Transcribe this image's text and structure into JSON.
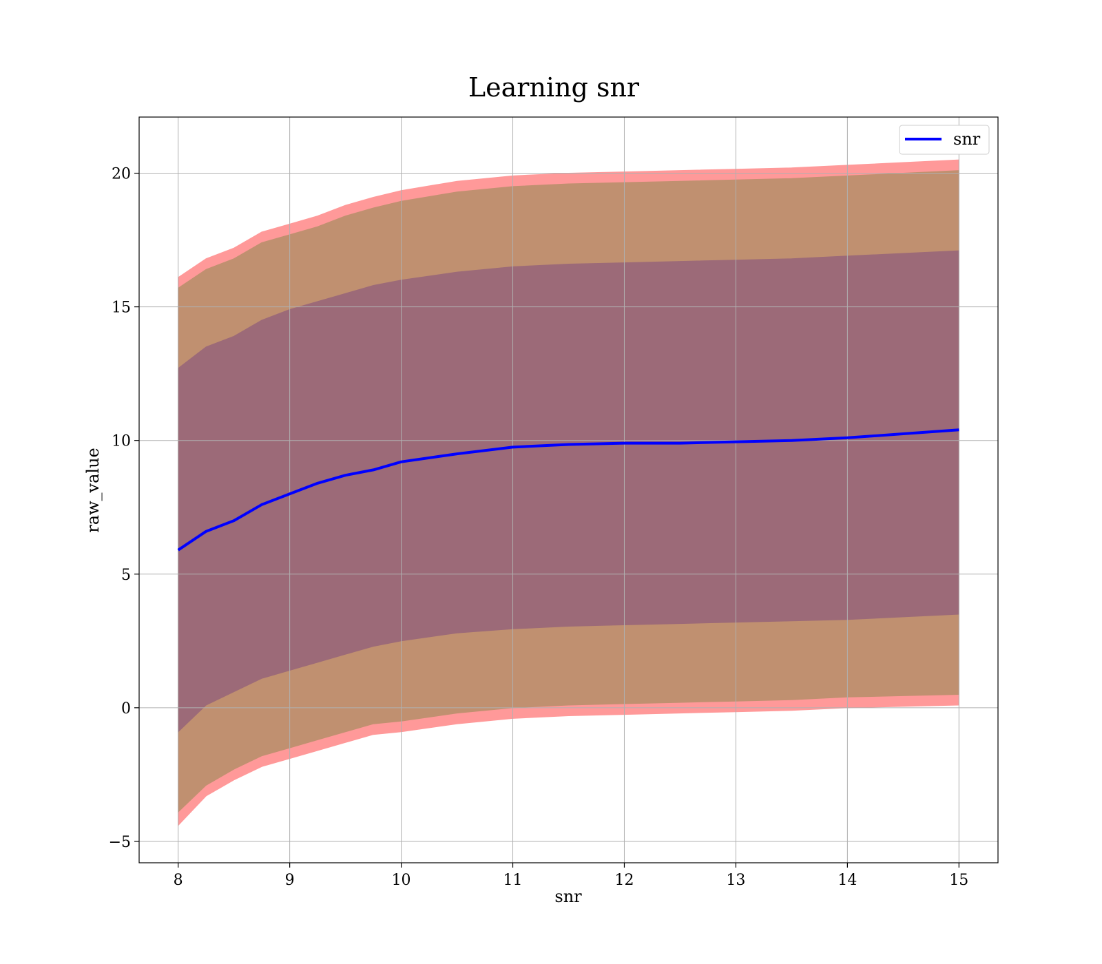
{
  "chart_data": {
    "type": "line",
    "title": "Learning snr",
    "xlabel": "snr",
    "ylabel": "raw_value",
    "xlim": [
      7.65,
      15.35
    ],
    "ylim": [
      -5.8,
      22.1
    ],
    "x_ticks": [
      8,
      9,
      10,
      11,
      12,
      13,
      14,
      15
    ],
    "x_tick_labels": [
      "8",
      "9",
      "10",
      "11",
      "12",
      "13",
      "14",
      "15"
    ],
    "y_ticks": [
      -5,
      0,
      5,
      10,
      15,
      20
    ],
    "y_tick_labels": [
      "−5",
      "0",
      "5",
      "10",
      "15",
      "20"
    ],
    "grid": true,
    "legend": {
      "placement": "top-right",
      "entries": [
        "snr"
      ]
    },
    "x": [
      8.0,
      8.25,
      8.5,
      8.75,
      9.0,
      9.25,
      9.5,
      9.75,
      10.0,
      10.5,
      11.0,
      11.5,
      12.0,
      12.5,
      13.0,
      13.5,
      14.0,
      14.5,
      15.0
    ],
    "series": [
      {
        "name": "snr",
        "color": "#0000ff",
        "values": [
          5.9,
          6.6,
          7.0,
          7.6,
          8.0,
          8.4,
          8.7,
          8.9,
          9.2,
          9.5,
          9.75,
          9.85,
          9.9,
          9.9,
          9.95,
          10.0,
          10.1,
          10.25,
          10.4
        ]
      }
    ],
    "bands": [
      {
        "color": "#ff9999",
        "lower": [
          -4.4,
          -3.3,
          -2.7,
          -2.2,
          -1.9,
          -1.6,
          -1.3,
          -1.0,
          -0.9,
          -0.6,
          -0.4,
          -0.3,
          -0.25,
          -0.2,
          -0.15,
          -0.1,
          0.0,
          0.05,
          0.1
        ],
        "upper": [
          16.1,
          16.8,
          17.2,
          17.8,
          18.1,
          18.4,
          18.8,
          19.1,
          19.35,
          19.7,
          19.9,
          20.0,
          20.05,
          20.1,
          20.15,
          20.2,
          20.3,
          20.4,
          20.5
        ]
      },
      {
        "color": "#c09070",
        "lower": [
          -3.9,
          -2.9,
          -2.3,
          -1.8,
          -1.5,
          -1.2,
          -0.9,
          -0.6,
          -0.5,
          -0.2,
          0.0,
          0.1,
          0.15,
          0.2,
          0.25,
          0.3,
          0.4,
          0.45,
          0.5
        ],
        "upper": [
          15.7,
          16.4,
          16.8,
          17.4,
          17.7,
          18.0,
          18.4,
          18.7,
          18.95,
          19.3,
          19.5,
          19.6,
          19.65,
          19.7,
          19.75,
          19.8,
          19.9,
          20.0,
          20.1
        ]
      },
      {
        "color": "#9c6a78",
        "lower": [
          -0.9,
          0.1,
          0.6,
          1.1,
          1.4,
          1.7,
          2.0,
          2.3,
          2.5,
          2.8,
          2.95,
          3.05,
          3.1,
          3.15,
          3.2,
          3.25,
          3.3,
          3.4,
          3.5
        ],
        "upper": [
          12.7,
          13.5,
          13.9,
          14.5,
          14.9,
          15.2,
          15.5,
          15.8,
          16.0,
          16.3,
          16.5,
          16.6,
          16.65,
          16.7,
          16.75,
          16.8,
          16.9,
          17.0,
          17.1
        ]
      }
    ]
  }
}
